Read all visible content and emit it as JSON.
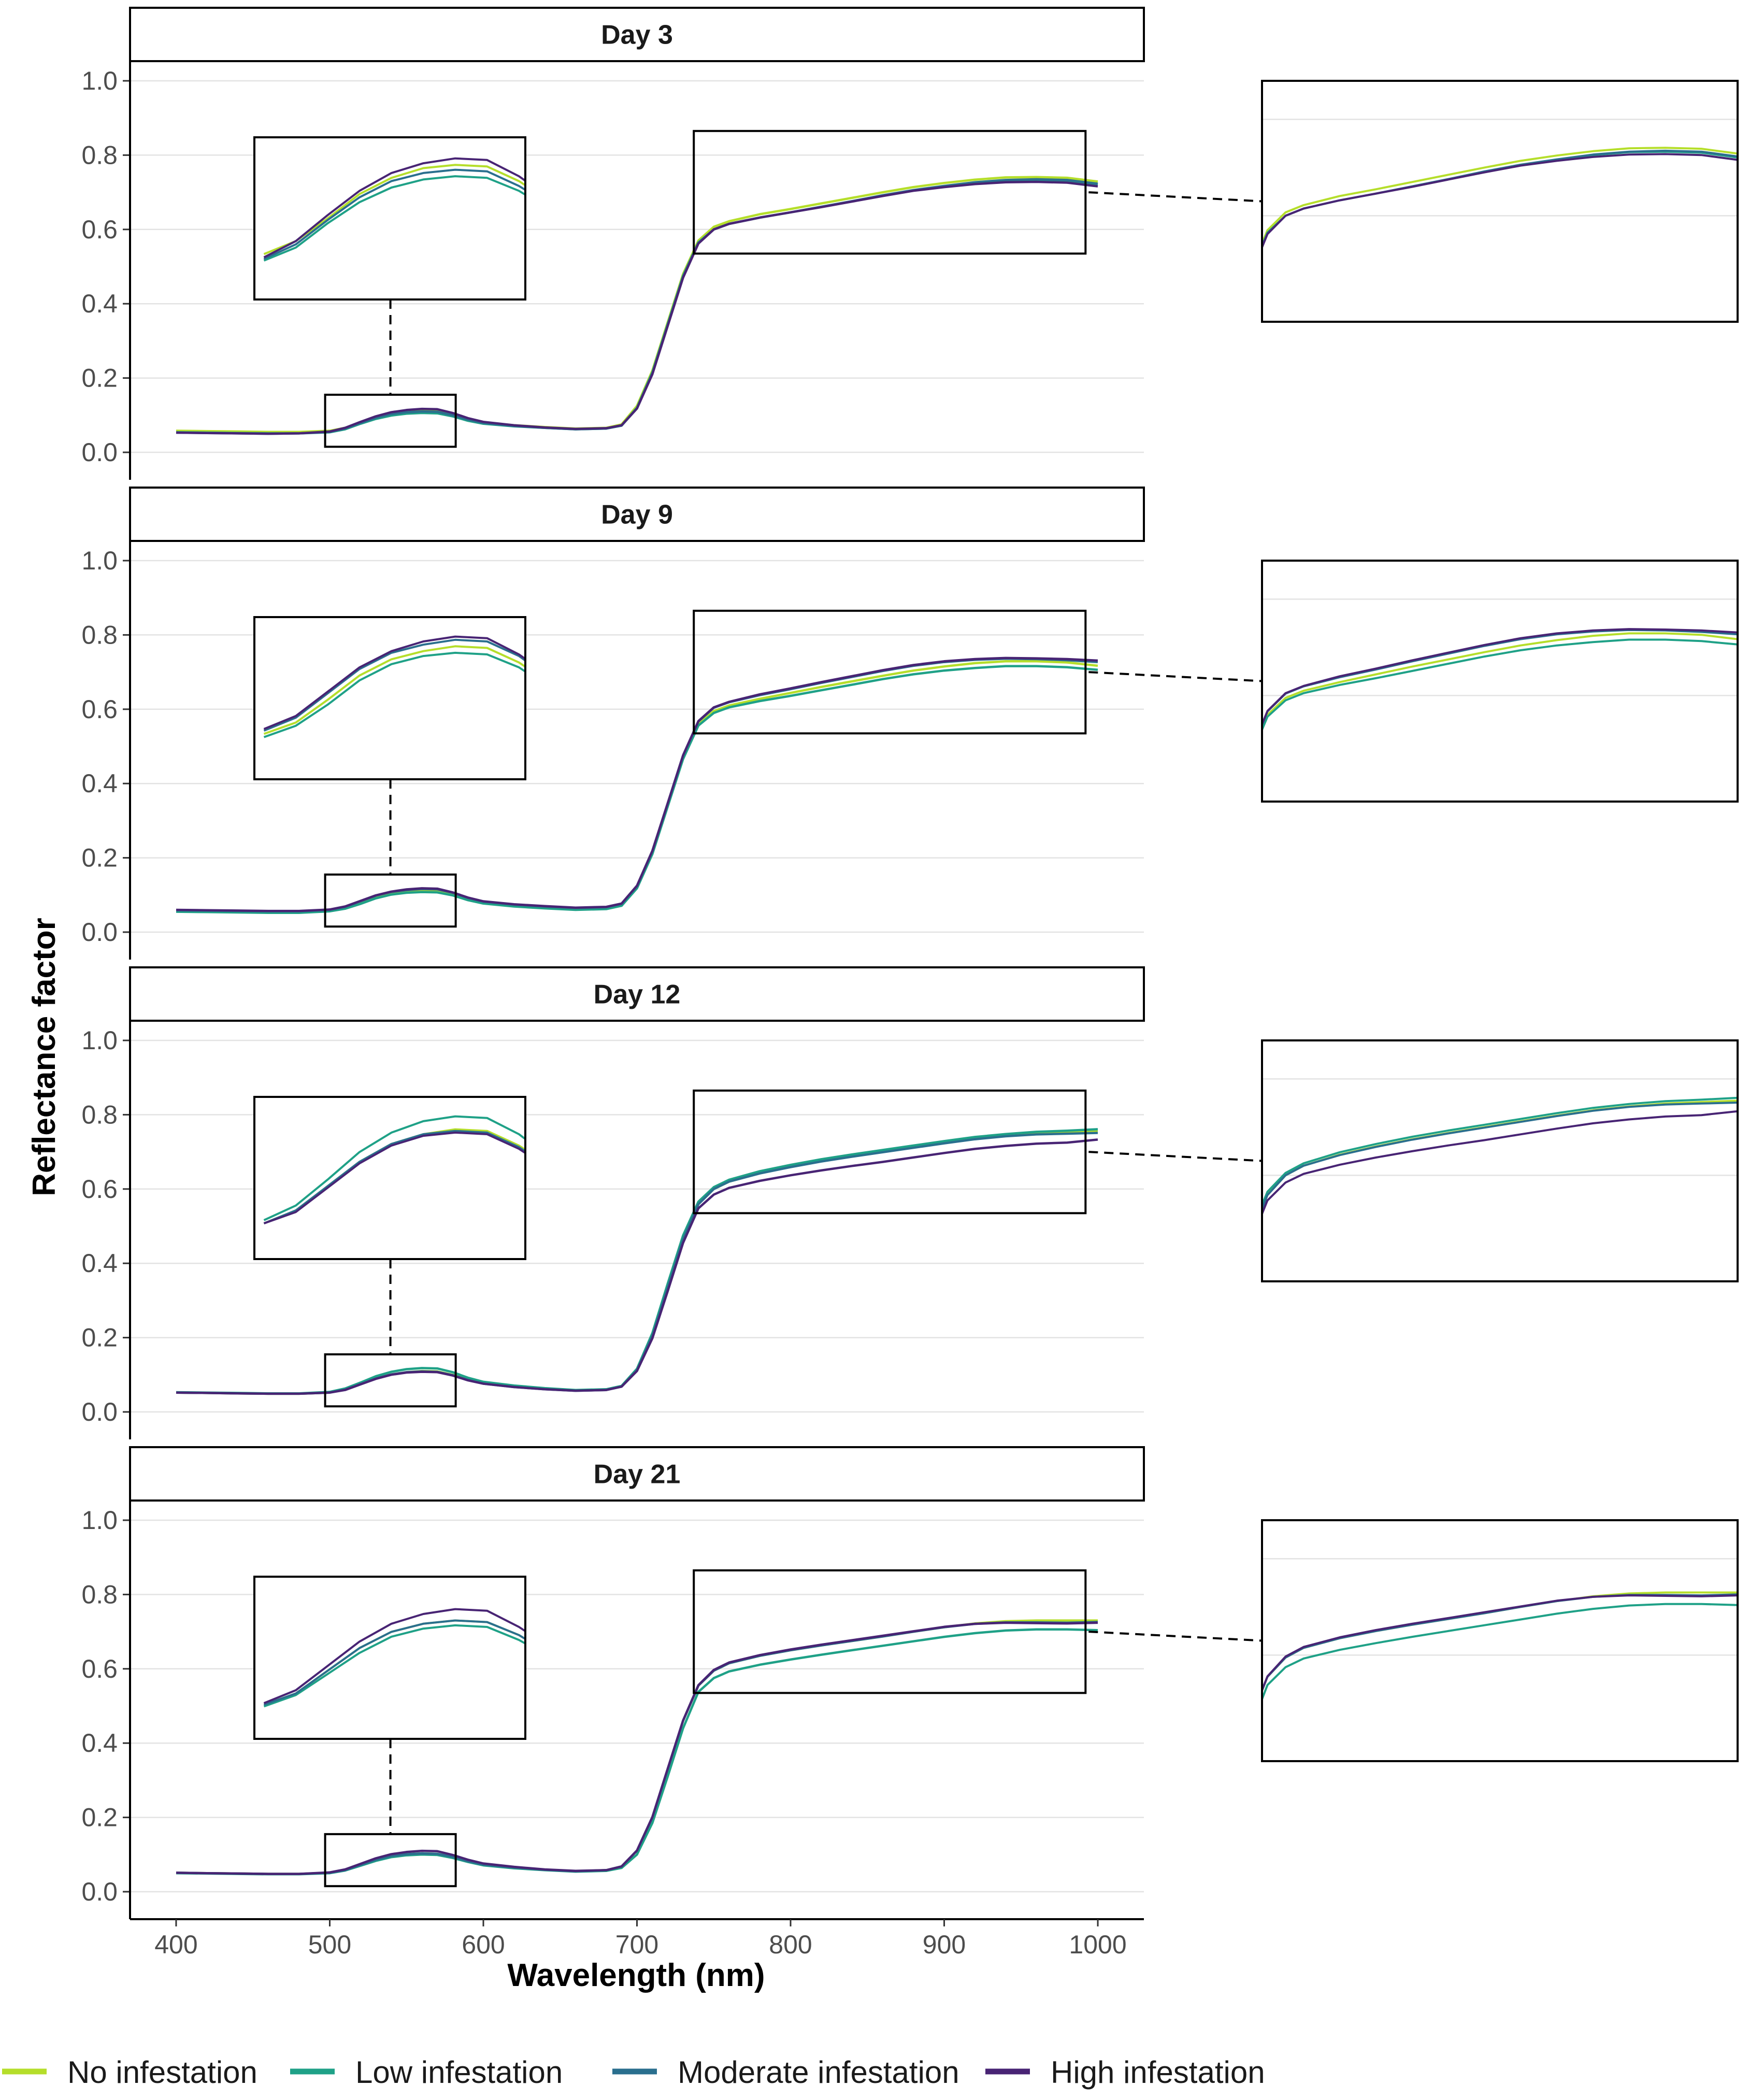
{
  "chart_data": {
    "type": "line",
    "xlabel": "Wavelength (nm)",
    "ylabel": "Reflectance factor",
    "xlim": [
      370,
      1030
    ],
    "ylim": [
      0,
      1.0
    ],
    "x_ticks": [
      400,
      500,
      600,
      700,
      800,
      900,
      1000
    ],
    "y_ticks": [
      0.0,
      0.2,
      0.4,
      0.6,
      0.8,
      1.0
    ],
    "y_tick_labels": [
      "0.0",
      "0.2",
      "0.4",
      "0.6",
      "0.8",
      "1.0"
    ],
    "zoom_regions": {
      "green_peak": {
        "x_range": [
          497,
          582
        ],
        "y_range": [
          0.015,
          0.155
        ]
      },
      "nir_plateau": {
        "x_range": [
          737,
          992
        ],
        "y_range": [
          0.535,
          0.865
        ]
      }
    },
    "wavelengths": [
      400,
      420,
      440,
      460,
      480,
      500,
      510,
      520,
      530,
      540,
      550,
      560,
      570,
      580,
      590,
      600,
      620,
      640,
      660,
      680,
      690,
      700,
      710,
      720,
      730,
      740,
      750,
      760,
      780,
      800,
      820,
      840,
      860,
      880,
      900,
      920,
      940,
      960,
      980,
      1000
    ],
    "legend": [
      {
        "name": "No infestation",
        "color": "#b5de2b"
      },
      {
        "name": "Low infestation",
        "color": "#1fa187"
      },
      {
        "name": "Moderate infestation",
        "color": "#2a6f8e"
      },
      {
        "name": "High infestation",
        "color": "#482474"
      }
    ],
    "panels": [
      {
        "title": "Day 3",
        "series": [
          {
            "name": "No infestation",
            "values": [
              0.058,
              0.057,
              0.056,
              0.055,
              0.055,
              0.058,
              0.066,
              0.08,
              0.095,
              0.105,
              0.111,
              0.113,
              0.112,
              0.103,
              0.09,
              0.08,
              0.073,
              0.068,
              0.064,
              0.066,
              0.075,
              0.125,
              0.22,
              0.35,
              0.48,
              0.57,
              0.607,
              0.622,
              0.641,
              0.655,
              0.67,
              0.685,
              0.7,
              0.714,
              0.725,
              0.734,
              0.74,
              0.741,
              0.739,
              0.729
            ]
          },
          {
            "name": "Low infestation",
            "values": [
              0.054,
              0.053,
              0.052,
              0.051,
              0.051,
              0.054,
              0.062,
              0.077,
              0.09,
              0.099,
              0.104,
              0.106,
              0.105,
              0.097,
              0.085,
              0.077,
              0.07,
              0.066,
              0.062,
              0.064,
              0.072,
              0.12,
              0.215,
              0.345,
              0.475,
              0.565,
              0.6,
              0.615,
              0.632,
              0.646,
              0.661,
              0.676,
              0.691,
              0.705,
              0.716,
              0.726,
              0.732,
              0.733,
              0.731,
              0.721
            ]
          },
          {
            "name": "Moderate infestation",
            "values": [
              0.053,
              0.052,
              0.051,
              0.05,
              0.051,
              0.055,
              0.064,
              0.079,
              0.093,
              0.103,
              0.108,
              0.11,
              0.109,
              0.1,
              0.088,
              0.079,
              0.071,
              0.066,
              0.062,
              0.064,
              0.072,
              0.118,
              0.212,
              0.342,
              0.472,
              0.563,
              0.6,
              0.615,
              0.632,
              0.646,
              0.661,
              0.676,
              0.692,
              0.706,
              0.717,
              0.727,
              0.733,
              0.735,
              0.733,
              0.723
            ]
          },
          {
            "name": "High infestation",
            "values": [
              0.053,
              0.052,
              0.051,
              0.05,
              0.051,
              0.056,
              0.066,
              0.082,
              0.097,
              0.108,
              0.114,
              0.117,
              0.116,
              0.106,
              0.092,
              0.082,
              0.073,
              0.067,
              0.063,
              0.065,
              0.073,
              0.118,
              0.21,
              0.34,
              0.47,
              0.562,
              0.6,
              0.615,
              0.632,
              0.646,
              0.66,
              0.675,
              0.69,
              0.704,
              0.714,
              0.722,
              0.727,
              0.728,
              0.726,
              0.716
            ]
          }
        ]
      },
      {
        "title": "Day 9",
        "series": [
          {
            "name": "No infestation",
            "values": [
              0.058,
              0.057,
              0.056,
              0.055,
              0.055,
              0.058,
              0.065,
              0.079,
              0.094,
              0.104,
              0.109,
              0.112,
              0.111,
              0.102,
              0.089,
              0.08,
              0.072,
              0.067,
              0.063,
              0.065,
              0.074,
              0.122,
              0.215,
              0.342,
              0.47,
              0.56,
              0.595,
              0.61,
              0.628,
              0.644,
              0.66,
              0.675,
              0.69,
              0.704,
              0.715,
              0.724,
              0.729,
              0.729,
              0.726,
              0.717
            ]
          },
          {
            "name": "Low infestation",
            "values": [
              0.055,
              0.054,
              0.053,
              0.052,
              0.052,
              0.056,
              0.063,
              0.076,
              0.091,
              0.101,
              0.106,
              0.108,
              0.107,
              0.099,
              0.086,
              0.077,
              0.069,
              0.064,
              0.06,
              0.062,
              0.071,
              0.118,
              0.21,
              0.338,
              0.466,
              0.556,
              0.59,
              0.605,
              0.622,
              0.636,
              0.651,
              0.666,
              0.681,
              0.694,
              0.704,
              0.711,
              0.716,
              0.716,
              0.713,
              0.706
            ]
          },
          {
            "name": "Moderate infestation",
            "values": [
              0.059,
              0.058,
              0.057,
              0.056,
              0.056,
              0.06,
              0.068,
              0.083,
              0.098,
              0.108,
              0.113,
              0.116,
              0.115,
              0.106,
              0.092,
              0.082,
              0.074,
              0.069,
              0.065,
              0.067,
              0.076,
              0.124,
              0.218,
              0.346,
              0.475,
              0.567,
              0.604,
              0.619,
              0.638,
              0.654,
              0.671,
              0.687,
              0.703,
              0.717,
              0.727,
              0.733,
              0.736,
              0.735,
              0.732,
              0.727
            ]
          },
          {
            "name": "High infestation",
            "values": [
              0.06,
              0.059,
              0.058,
              0.057,
              0.057,
              0.061,
              0.069,
              0.084,
              0.099,
              0.109,
              0.115,
              0.118,
              0.117,
              0.107,
              0.093,
              0.083,
              0.075,
              0.07,
              0.066,
              0.068,
              0.077,
              0.125,
              0.219,
              0.347,
              0.476,
              0.568,
              0.605,
              0.62,
              0.64,
              0.656,
              0.673,
              0.689,
              0.705,
              0.719,
              0.729,
              0.735,
              0.738,
              0.737,
              0.735,
              0.731
            ]
          }
        ]
      },
      {
        "title": "Day 12",
        "series": [
          {
            "name": "No infestation",
            "values": [
              0.052,
              0.051,
              0.05,
              0.049,
              0.049,
              0.052,
              0.06,
              0.075,
              0.09,
              0.101,
              0.107,
              0.11,
              0.109,
              0.1,
              0.087,
              0.077,
              0.068,
              0.062,
              0.058,
              0.06,
              0.069,
              0.113,
              0.205,
              0.335,
              0.465,
              0.56,
              0.6,
              0.62,
              0.643,
              0.66,
              0.675,
              0.688,
              0.7,
              0.712,
              0.724,
              0.735,
              0.743,
              0.749,
              0.752,
              0.755
            ]
          },
          {
            "name": "Low infestation",
            "values": [
              0.053,
              0.052,
              0.051,
              0.05,
              0.05,
              0.054,
              0.063,
              0.079,
              0.096,
              0.108,
              0.115,
              0.118,
              0.117,
              0.107,
              0.092,
              0.081,
              0.071,
              0.064,
              0.059,
              0.061,
              0.07,
              0.116,
              0.212,
              0.345,
              0.475,
              0.566,
              0.605,
              0.625,
              0.648,
              0.665,
              0.68,
              0.693,
              0.705,
              0.717,
              0.729,
              0.74,
              0.748,
              0.754,
              0.757,
              0.761
            ]
          },
          {
            "name": "Moderate infestation",
            "values": [
              0.052,
              0.051,
              0.05,
              0.049,
              0.049,
              0.052,
              0.06,
              0.075,
              0.09,
              0.101,
              0.107,
              0.109,
              0.108,
              0.099,
              0.086,
              0.076,
              0.067,
              0.061,
              0.057,
              0.059,
              0.068,
              0.112,
              0.204,
              0.334,
              0.464,
              0.559,
              0.6,
              0.62,
              0.642,
              0.659,
              0.674,
              0.687,
              0.699,
              0.711,
              0.723,
              0.734,
              0.742,
              0.747,
              0.749,
              0.751
            ]
          },
          {
            "name": "High infestation",
            "values": [
              0.052,
              0.051,
              0.05,
              0.049,
              0.049,
              0.052,
              0.059,
              0.074,
              0.089,
              0.1,
              0.106,
              0.108,
              0.107,
              0.098,
              0.085,
              0.076,
              0.067,
              0.061,
              0.057,
              0.059,
              0.068,
              0.11,
              0.198,
              0.325,
              0.455,
              0.548,
              0.585,
              0.603,
              0.622,
              0.637,
              0.65,
              0.662,
              0.673,
              0.685,
              0.697,
              0.708,
              0.716,
              0.722,
              0.725,
              0.733
            ]
          }
        ]
      },
      {
        "title": "Day 21",
        "series": [
          {
            "name": "No infestation",
            "values": [
              0.051,
              0.05,
              0.049,
              0.048,
              0.048,
              0.051,
              0.058,
              0.072,
              0.086,
              0.096,
              0.101,
              0.103,
              0.102,
              0.094,
              0.082,
              0.073,
              0.065,
              0.059,
              0.055,
              0.058,
              0.068,
              0.11,
              0.2,
              0.33,
              0.46,
              0.555,
              0.595,
              0.615,
              0.635,
              0.65,
              0.663,
              0.675,
              0.687,
              0.7,
              0.712,
              0.722,
              0.728,
              0.73,
              0.73,
              0.73
            ]
          },
          {
            "name": "Low infestation",
            "values": [
              0.05,
              0.049,
              0.048,
              0.047,
              0.047,
              0.05,
              0.057,
              0.07,
              0.083,
              0.093,
              0.098,
              0.1,
              0.099,
              0.091,
              0.08,
              0.071,
              0.063,
              0.058,
              0.054,
              0.056,
              0.064,
              0.1,
              0.185,
              0.31,
              0.44,
              0.538,
              0.575,
              0.593,
              0.611,
              0.625,
              0.638,
              0.65,
              0.662,
              0.674,
              0.686,
              0.696,
              0.703,
              0.706,
              0.706,
              0.704
            ]
          },
          {
            "name": "Moderate infestation",
            "values": [
              0.051,
              0.05,
              0.049,
              0.048,
              0.048,
              0.051,
              0.058,
              0.072,
              0.086,
              0.096,
              0.101,
              0.103,
              0.102,
              0.094,
              0.082,
              0.073,
              0.065,
              0.059,
              0.055,
              0.058,
              0.068,
              0.11,
              0.2,
              0.33,
              0.46,
              0.555,
              0.595,
              0.615,
              0.635,
              0.65,
              0.663,
              0.675,
              0.687,
              0.7,
              0.712,
              0.721,
              0.725,
              0.725,
              0.724,
              0.726
            ]
          },
          {
            "name": "High infestation",
            "values": [
              0.051,
              0.05,
              0.049,
              0.048,
              0.048,
              0.052,
              0.06,
              0.075,
              0.09,
              0.101,
              0.107,
              0.11,
              0.109,
              0.099,
              0.086,
              0.076,
              0.067,
              0.06,
              0.056,
              0.058,
              0.068,
              0.111,
              0.201,
              0.331,
              0.461,
              0.556,
              0.597,
              0.617,
              0.637,
              0.652,
              0.665,
              0.677,
              0.689,
              0.701,
              0.713,
              0.721,
              0.724,
              0.723,
              0.722,
              0.724
            ]
          }
        ]
      }
    ]
  }
}
